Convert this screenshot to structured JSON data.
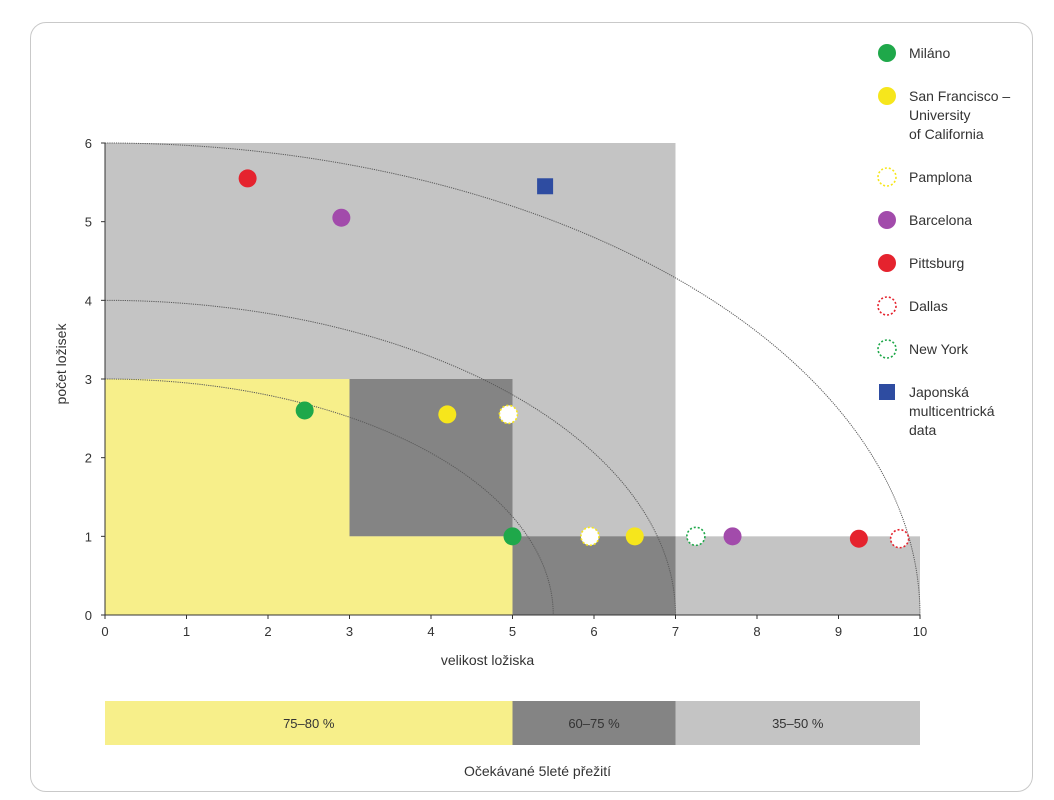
{
  "chart_data": {
    "type": "scatter",
    "xlabel": "velikost ložiska",
    "ylabel": "počet ložisek",
    "xlim": [
      0,
      10
    ],
    "ylim": [
      0,
      6
    ],
    "x_ticks": [
      0,
      1,
      2,
      3,
      4,
      5,
      6,
      7,
      8,
      9,
      10
    ],
    "y_ticks": [
      0,
      1,
      2,
      3,
      4,
      5,
      6
    ],
    "regions": [
      {
        "name": "35–50 %",
        "color": "#c4c4c4",
        "x": [
          0,
          7
        ],
        "y": [
          0,
          6
        ]
      },
      {
        "name": "35–50 %",
        "color": "#c4c4c4",
        "x": [
          7,
          10
        ],
        "y": [
          0,
          1
        ]
      },
      {
        "name": "60–75 %",
        "color": "#848484",
        "x": [
          3,
          5
        ],
        "y": [
          1,
          3
        ]
      },
      {
        "name": "60–75 %",
        "color": "#848484",
        "x": [
          5,
          7
        ],
        "y": [
          0,
          1
        ]
      },
      {
        "name": "75–80 %",
        "color": "#f7ef8a",
        "x": [
          0,
          3
        ],
        "y": [
          0,
          3
        ]
      },
      {
        "name": "75–80 %",
        "color": "#f7ef8a",
        "x": [
          3,
          5
        ],
        "y": [
          0,
          1
        ]
      }
    ],
    "arcs": [
      {
        "rx": 5.5,
        "ry": 3
      },
      {
        "rx": 7,
        "ry": 4
      },
      {
        "rx": 10,
        "ry": 6
      }
    ],
    "series": [
      {
        "name": "Miláno",
        "color": "#1fa84a",
        "style": "filled",
        "shape": "circle",
        "points": [
          [
            2.45,
            2.6
          ],
          [
            5.0,
            1.0
          ]
        ]
      },
      {
        "name": "San Francisco – University of California",
        "color": "#f6e61c",
        "style": "filled",
        "shape": "circle",
        "points": [
          [
            4.2,
            2.55
          ],
          [
            6.5,
            1.0
          ]
        ]
      },
      {
        "name": "Pamplona",
        "color": "#f6e61c",
        "style": "dotted",
        "shape": "circle",
        "points": [
          [
            4.95,
            2.55
          ],
          [
            5.95,
            1.0
          ]
        ]
      },
      {
        "name": "Barcelona",
        "color": "#a24bab",
        "style": "filled",
        "shape": "circle",
        "points": [
          [
            2.9,
            5.05
          ],
          [
            7.7,
            1.0
          ]
        ]
      },
      {
        "name": "Pittsburg",
        "color": "#e5232e",
        "style": "filled",
        "shape": "circle",
        "points": [
          [
            1.75,
            5.55
          ],
          [
            9.25,
            0.97
          ]
        ]
      },
      {
        "name": "Dallas",
        "color": "#e5232e",
        "style": "dotted",
        "shape": "circle",
        "points": [
          [
            9.75,
            0.97
          ]
        ]
      },
      {
        "name": "New York",
        "color": "#1fa84a",
        "style": "dotted",
        "shape": "circle",
        "points": [
          [
            7.25,
            1.0
          ]
        ]
      },
      {
        "name": "Japonská multicentrická data",
        "color": "#2e4ca1",
        "style": "filled",
        "shape": "square",
        "points": [
          [
            5.4,
            5.45
          ]
        ]
      }
    ],
    "legend": {
      "placement": "right",
      "entries": [
        {
          "series": 0,
          "lines": [
            "Miláno"
          ]
        },
        {
          "series": 1,
          "lines": [
            "San Francisco –",
            "University",
            "of California"
          ]
        },
        {
          "series": 2,
          "lines": [
            "Pamplona"
          ]
        },
        {
          "series": 3,
          "lines": [
            "Barcelona"
          ]
        },
        {
          "series": 4,
          "lines": [
            "Pittsburg"
          ]
        },
        {
          "series": 5,
          "lines": [
            "Dallas"
          ]
        },
        {
          "series": 6,
          "lines": [
            "New York"
          ]
        },
        {
          "series": 7,
          "lines": [
            "Japonská",
            "multicentrická",
            "data"
          ]
        }
      ]
    },
    "survival_bar": {
      "title": "Očekávané 5leté přežití",
      "segments": [
        {
          "label": "75–80 %",
          "color": "#f7ef8a",
          "x": [
            0,
            5
          ]
        },
        {
          "label": "60–75 %",
          "color": "#848484",
          "x": [
            5,
            7
          ]
        },
        {
          "label": "35–50 %",
          "color": "#c4c4c4",
          "x": [
            7,
            10
          ]
        }
      ]
    }
  }
}
